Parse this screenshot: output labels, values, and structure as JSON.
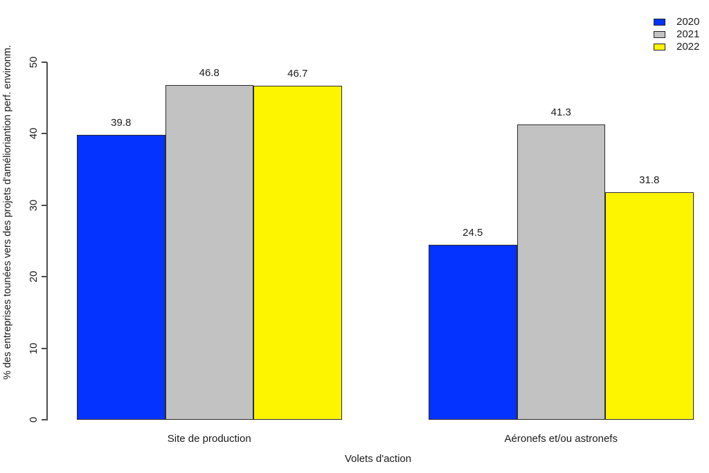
{
  "chart_data": {
    "type": "bar",
    "title": "",
    "xlabel": "Volets d'action",
    "ylabel": "% des entreprises tounées vers des projets d'amélioriantion perf. environm.",
    "categories": [
      "Site de production",
      "Aéronefs et/ou astronefs"
    ],
    "series": [
      {
        "name": "2020",
        "color": "#0433ff",
        "values": [
          39.8,
          24.5
        ]
      },
      {
        "name": "2021",
        "color": "#c2c2c2",
        "values": [
          46.8,
          41.3
        ]
      },
      {
        "name": "2022",
        "color": "#fdf500",
        "values": [
          46.7,
          31.8
        ]
      }
    ],
    "ylim": [
      0,
      50
    ],
    "yticks": [
      0,
      10,
      20,
      30,
      40,
      50
    ],
    "grid": false,
    "legend_position": "top-right",
    "value_labels": true,
    "bar_border_color": "#2a2a2a",
    "axis_color": "#4a4a4a",
    "text_color": "#1a1a1a",
    "background_color": "#ffffff"
  }
}
